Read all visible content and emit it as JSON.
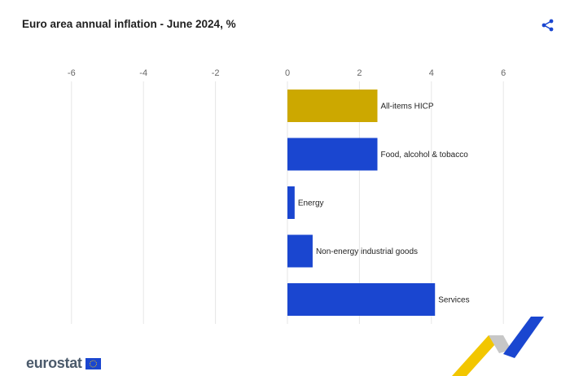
{
  "title": "Euro area annual inflation - June 2024, %",
  "share_icon": "share-icon",
  "brand": {
    "name": "eurostat",
    "flag_icon": "eu-flag-icon"
  },
  "colors": {
    "highlight": "#cca800",
    "series": "#1a46d0",
    "grid": "#e6e6e6"
  },
  "chart_data": {
    "type": "bar",
    "orientation": "horizontal",
    "title": "Euro area annual inflation - June 2024, %",
    "categories": [
      "All-items HICP",
      "Food, alcohol & tobacco",
      "Energy",
      "Non-energy industrial goods",
      "Services"
    ],
    "values": [
      2.5,
      2.5,
      0.2,
      0.7,
      4.1
    ],
    "xlim": [
      -6,
      7
    ],
    "xticks": [
      -6,
      -4,
      -2,
      0,
      2,
      4,
      6
    ],
    "grid": true
  }
}
